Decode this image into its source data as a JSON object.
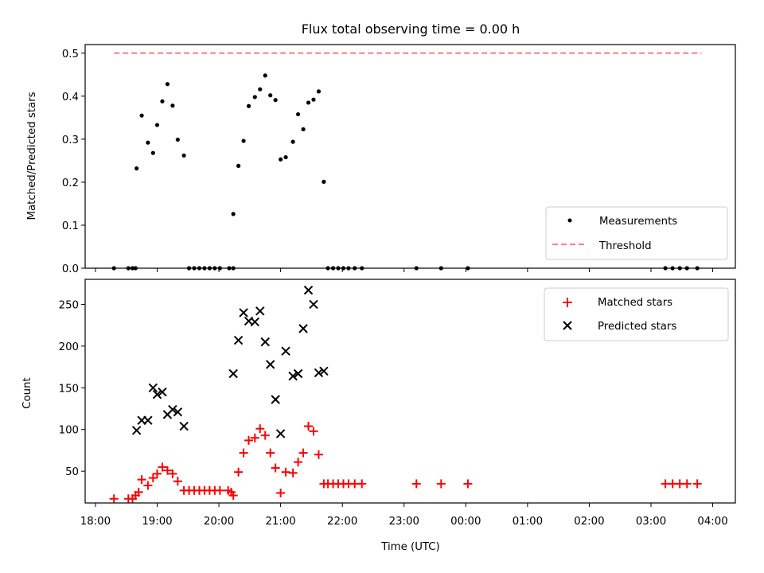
{
  "chart_data": [
    {
      "type": "scatter",
      "title": "Flux total observing time = 0.00 h",
      "xlabel": "",
      "ylabel": "Matched/Predicted stars",
      "ylim": [
        0,
        0.52
      ],
      "yticks": [
        "0.0",
        "0.1",
        "0.2",
        "0.3",
        "0.4",
        "0.5"
      ],
      "legend_position": "lower-right",
      "series": [
        {
          "name": "Measurements",
          "color": "#000000",
          "marker": "dot",
          "points": [
            [
              "18:18",
              0.0
            ],
            [
              "18:32",
              0.0
            ],
            [
              "18:36",
              0.0
            ],
            [
              "18:39",
              0.0
            ],
            [
              "18:40",
              0.232
            ],
            [
              "18:45",
              0.355
            ],
            [
              "18:51",
              0.292
            ],
            [
              "18:56",
              0.268
            ],
            [
              "19:00",
              0.333
            ],
            [
              "19:05",
              0.388
            ],
            [
              "19:10",
              0.428
            ],
            [
              "19:15",
              0.378
            ],
            [
              "19:20",
              0.299
            ],
            [
              "19:26",
              0.262
            ],
            [
              "19:31",
              0.0
            ],
            [
              "19:36",
              0.0
            ],
            [
              "19:41",
              0.0
            ],
            [
              "19:46",
              0.0
            ],
            [
              "19:51",
              0.0
            ],
            [
              "19:56",
              0.0
            ],
            [
              "20:01",
              0.0
            ],
            [
              "20:10",
              0.0
            ],
            [
              "20:14",
              0.0
            ],
            [
              "20:14",
              0.126
            ],
            [
              "20:19",
              0.238
            ],
            [
              "20:24",
              0.296
            ],
            [
              "20:29",
              0.377
            ],
            [
              "20:35",
              0.398
            ],
            [
              "20:40",
              0.416
            ],
            [
              "20:45",
              0.448
            ],
            [
              "20:50",
              0.402
            ],
            [
              "20:55",
              0.391
            ],
            [
              "21:00",
              0.253
            ],
            [
              "21:05",
              0.258
            ],
            [
              "21:12",
              0.294
            ],
            [
              "21:17",
              0.358
            ],
            [
              "21:22",
              0.323
            ],
            [
              "21:27",
              0.385
            ],
            [
              "21:32",
              0.392
            ],
            [
              "21:37",
              0.411
            ],
            [
              "21:42",
              0.201
            ],
            [
              "21:46",
              0.0
            ],
            [
              "21:51",
              0.0
            ],
            [
              "21:56",
              0.0
            ],
            [
              "22:01",
              0.0
            ],
            [
              "22:06",
              0.0
            ],
            [
              "22:12",
              0.0
            ],
            [
              "22:19",
              0.0
            ],
            [
              "23:12",
              0.0
            ],
            [
              "23:36",
              0.0
            ],
            [
              "24:02",
              0.0
            ],
            [
              "27:14",
              0.0
            ],
            [
              "27:21",
              0.0
            ],
            [
              "27:28",
              0.0
            ],
            [
              "27:35",
              0.0
            ],
            [
              "27:45",
              0.0
            ]
          ]
        },
        {
          "name": "Threshold",
          "color": "#ff7f7f",
          "style": "dashed-line",
          "points": [
            [
              "18:18",
              0.5
            ],
            [
              "27:49",
              0.5
            ]
          ]
        }
      ]
    },
    {
      "type": "scatter",
      "title": "",
      "xlabel": "Time (UTC)",
      "ylabel": "Count",
      "ylim": [
        12,
        280
      ],
      "yticks": [
        "50",
        "100",
        "150",
        "200",
        "250"
      ],
      "xlim": [
        "17:50",
        "28:22"
      ],
      "xticks": [
        "18:00",
        "19:00",
        "20:00",
        "21:00",
        "22:00",
        "23:00",
        "00:00",
        "01:00",
        "02:00",
        "03:00",
        "04:00"
      ],
      "legend_position": "upper-right",
      "series": [
        {
          "name": "Matched stars",
          "color": "#ff0000",
          "marker": "plus",
          "points": [
            [
              "18:18",
              17
            ],
            [
              "18:32",
              17
            ],
            [
              "18:36",
              17
            ],
            [
              "18:39",
              21
            ],
            [
              "18:42",
              25
            ],
            [
              "18:45",
              40
            ],
            [
              "18:51",
              33
            ],
            [
              "18:56",
              42
            ],
            [
              "19:00",
              47
            ],
            [
              "19:05",
              55
            ],
            [
              "19:10",
              51
            ],
            [
              "19:15",
              47
            ],
            [
              "19:20",
              38
            ],
            [
              "19:26",
              27
            ],
            [
              "19:31",
              27
            ],
            [
              "19:36",
              27
            ],
            [
              "19:41",
              27
            ],
            [
              "19:46",
              27
            ],
            [
              "19:51",
              27
            ],
            [
              "19:56",
              27
            ],
            [
              "20:01",
              27
            ],
            [
              "20:09",
              27
            ],
            [
              "20:12",
              25
            ],
            [
              "20:14",
              21
            ],
            [
              "20:19",
              49
            ],
            [
              "20:24",
              72
            ],
            [
              "20:29",
              87
            ],
            [
              "20:35",
              90
            ],
            [
              "20:40",
              101
            ],
            [
              "20:45",
              93
            ],
            [
              "20:50",
              72
            ],
            [
              "20:55",
              54
            ],
            [
              "21:00",
              24
            ],
            [
              "21:05",
              49
            ],
            [
              "21:12",
              48
            ],
            [
              "21:17",
              61
            ],
            [
              "21:22",
              72
            ],
            [
              "21:27",
              104
            ],
            [
              "21:32",
              98
            ],
            [
              "21:37",
              70
            ],
            [
              "21:42",
              35
            ],
            [
              "21:46",
              35
            ],
            [
              "21:51",
              35
            ],
            [
              "21:56",
              35
            ],
            [
              "22:01",
              35
            ],
            [
              "22:06",
              35
            ],
            [
              "22:12",
              35
            ],
            [
              "22:19",
              35
            ],
            [
              "23:12",
              35
            ],
            [
              "23:36",
              35
            ],
            [
              "24:02",
              35
            ],
            [
              "27:14",
              35
            ],
            [
              "27:21",
              35
            ],
            [
              "27:28",
              35
            ],
            [
              "27:35",
              35
            ],
            [
              "27:45",
              35
            ]
          ]
        },
        {
          "name": "Predicted stars",
          "color": "#000000",
          "marker": "x",
          "points": [
            [
              "18:40",
              99
            ],
            [
              "18:45",
              111
            ],
            [
              "18:51",
              111
            ],
            [
              "18:56",
              150
            ],
            [
              "19:00",
              142
            ],
            [
              "19:05",
              145
            ],
            [
              "19:10",
              118
            ],
            [
              "19:15",
              124
            ],
            [
              "19:20",
              121
            ],
            [
              "19:26",
              104
            ],
            [
              "20:14",
              167
            ],
            [
              "20:19",
              207
            ],
            [
              "20:24",
              240
            ],
            [
              "20:29",
              230
            ],
            [
              "20:35",
              229
            ],
            [
              "20:40",
              242
            ],
            [
              "20:45",
              205
            ],
            [
              "20:50",
              178
            ],
            [
              "20:55",
              136
            ],
            [
              "21:00",
              95
            ],
            [
              "21:05",
              194
            ],
            [
              "21:12",
              164
            ],
            [
              "21:17",
              167
            ],
            [
              "21:22",
              221
            ],
            [
              "21:27",
              267
            ],
            [
              "21:32",
              250
            ],
            [
              "21:37",
              168
            ],
            [
              "21:42",
              170
            ]
          ]
        }
      ]
    }
  ]
}
